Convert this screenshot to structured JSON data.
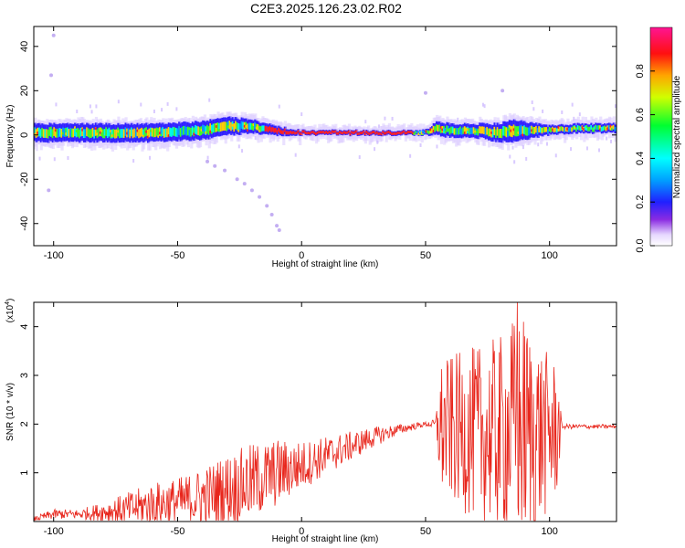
{
  "title": "C2E3.2025.126.23.02.R02",
  "chart_data": [
    {
      "type": "heatmap",
      "xlabel": "Height of straight line (km)",
      "ylabel": "Frequency (Hz)",
      "xlim": [
        -108,
        127
      ],
      "ylim": [
        -50,
        49
      ],
      "xticks": [
        -100,
        -50,
        0,
        50,
        100
      ],
      "yticks": [
        40,
        20,
        0,
        -20,
        -40
      ],
      "colorbar": {
        "label": "Normalized spectral amplitude",
        "range": [
          0.0,
          1.0
        ],
        "ticks": [
          0.0,
          0.2,
          0.4,
          0.6,
          0.8
        ],
        "tick_labels": [
          "0.0",
          "0.2",
          "0.4",
          "0.6",
          "0.8"
        ]
      },
      "band": {
        "description_points_x": [
          -105,
          -80,
          -60,
          -40,
          -30,
          -20,
          -10,
          0,
          20,
          40,
          50,
          55,
          60,
          70,
          80,
          85,
          90,
          100,
          110,
          127
        ],
        "center_hz": [
          1,
          1,
          1,
          2,
          4,
          4,
          2,
          1,
          1,
          1,
          1,
          3,
          2,
          2,
          1,
          2,
          2,
          2,
          3,
          3
        ],
        "half_width_hz": [
          4,
          4,
          4,
          4,
          4,
          3,
          2,
          1,
          1,
          1,
          1,
          3,
          3,
          3,
          4,
          5,
          4,
          2,
          2,
          2
        ]
      },
      "peak_amplitude_segment_x": [
        -15,
        45
      ],
      "stray_points": [
        {
          "x": -38,
          "y": -12
        },
        {
          "x": -35,
          "y": -14
        },
        {
          "x": -31,
          "y": -16
        },
        {
          "x": -26,
          "y": -20
        },
        {
          "x": -23,
          "y": -22
        },
        {
          "x": -20,
          "y": -25
        },
        {
          "x": -17,
          "y": -28
        },
        {
          "x": -14,
          "y": -32
        },
        {
          "x": -12,
          "y": -36
        },
        {
          "x": -10,
          "y": -41
        },
        {
          "x": -9,
          "y": -43
        },
        {
          "x": -100,
          "y": 45
        },
        {
          "x": -101,
          "y": 27
        },
        {
          "x": -102,
          "y": -25
        },
        {
          "x": 50,
          "y": 19
        },
        {
          "x": 81,
          "y": 20
        }
      ]
    },
    {
      "type": "line",
      "xlabel": "Height of straight line (km)",
      "ylabel": "SNR (10 * v/v)",
      "yscale_label": "(x10",
      "yscale_exp": "4",
      "xlim": [
        -108,
        127
      ],
      "ylim": [
        0,
        4.5
      ],
      "xticks": [
        -100,
        -50,
        0,
        50,
        100
      ],
      "yticks": [
        1,
        2,
        3,
        4
      ],
      "color": "#e8261c",
      "envelope": {
        "x": [
          -108,
          -100,
          -90,
          -80,
          -70,
          -60,
          -50,
          -40,
          -30,
          -20,
          -10,
          0,
          10,
          20,
          30,
          40,
          50,
          54,
          56,
          60,
          70,
          80,
          85,
          90,
          95,
          100,
          103,
          105,
          110,
          127
        ],
        "mean": [
          0.05,
          0.15,
          0.15,
          0.2,
          0.25,
          0.35,
          0.4,
          0.5,
          0.65,
          0.8,
          1.0,
          1.15,
          1.35,
          1.55,
          1.75,
          1.9,
          2.0,
          2.0,
          1.9,
          1.9,
          1.8,
          1.8,
          1.9,
          1.9,
          1.8,
          1.8,
          1.9,
          1.95,
          1.95,
          1.95
        ],
        "amplitude": [
          0.05,
          0.1,
          0.1,
          0.2,
          0.35,
          0.45,
          0.5,
          0.6,
          0.75,
          0.8,
          0.7,
          0.5,
          0.4,
          0.3,
          0.2,
          0.1,
          0.05,
          0.1,
          1.4,
          1.5,
          1.8,
          2.0,
          2.3,
          2.4,
          2.0,
          1.6,
          1.4,
          0.05,
          0.05,
          0.04
        ]
      },
      "max_value": 4.5,
      "max_at_x": 87
    }
  ]
}
